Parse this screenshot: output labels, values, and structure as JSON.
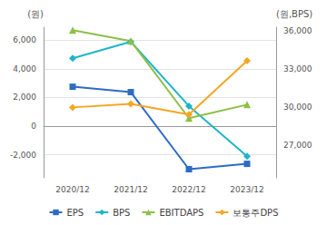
{
  "chart_data": {
    "type": "line",
    "categories": [
      "2020/12",
      "2021/12",
      "2022/12",
      "2023/12"
    ],
    "y_label": "(원)",
    "y2_label": "(원,BPS)",
    "ylim": [
      -3600,
      6900
    ],
    "yticks": [
      {
        "value": -2000,
        "label": "-2,000"
      },
      0,
      {
        "value": 2000,
        "label": "2,000"
      },
      {
        "value": 4000,
        "label": "4,000"
      },
      {
        "value": 6000,
        "label": "6,000"
      }
    ],
    "y2lim": [
      24400,
      36300
    ],
    "y2ticks": [
      {
        "value": 27000,
        "label": "27,000"
      },
      {
        "value": 30000,
        "label": "30,000"
      },
      {
        "value": 33000,
        "label": "33,000"
      },
      {
        "value": 36000,
        "label": "36,000"
      }
    ],
    "grid": true,
    "legend": "bottom",
    "series": [
      {
        "name": "EPS",
        "color": "#2e6bc4",
        "marker": "square",
        "values": [
          2750,
          2375,
          -3000,
          -2625
        ]
      },
      {
        "name": "BPS",
        "color": "#1fb5c9",
        "marker": "diamond",
        "axis": "y2",
        "values": [
          33850,
          35150,
          30070,
          26100
        ]
      },
      {
        "name": "EBITDAPS",
        "color": "#8dbf45",
        "marker": "triangle",
        "values": [
          6690,
          5940,
          560,
          1500
        ]
      },
      {
        "name": "보통주DPS",
        "color": "#f5a623",
        "marker": "diamond",
        "values": [
          1310,
          1560,
          810,
          4560
        ]
      }
    ]
  }
}
